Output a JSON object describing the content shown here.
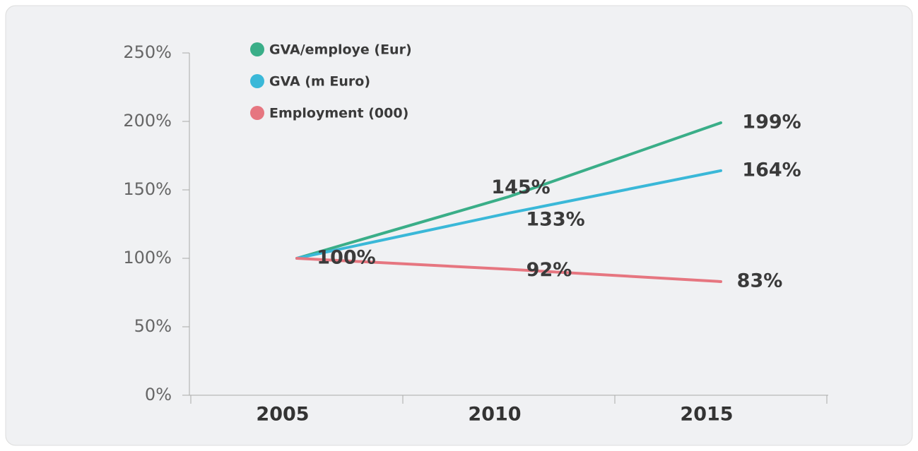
{
  "chart_data": {
    "type": "line",
    "categories": [
      "2005",
      "2010",
      "2015"
    ],
    "series": [
      {
        "name": "GVA/employe (Eur)",
        "color": "#3aae88",
        "values": [
          100,
          145,
          199
        ],
        "value_labels": [
          "100%",
          "145%",
          "199%"
        ]
      },
      {
        "name": "GVA (m Euro)",
        "color": "#3ab8d8",
        "values": [
          100,
          133,
          164
        ],
        "value_labels": [
          null,
          "133%",
          "164%"
        ]
      },
      {
        "name": "Employment (000)",
        "color": "#e67680",
        "values": [
          100,
          92,
          83
        ],
        "value_labels": [
          null,
          "92%",
          "83%"
        ]
      }
    ],
    "ylim": [
      0,
      250
    ],
    "yticks": [
      {
        "value": 0,
        "label": "0%"
      },
      {
        "value": 50,
        "label": "50%"
      },
      {
        "value": 100,
        "label": "100%"
      },
      {
        "value": 150,
        "label": "150%"
      },
      {
        "value": 200,
        "label": "200%"
      },
      {
        "value": 250,
        "label": "250%"
      }
    ],
    "legend": "upper left"
  }
}
